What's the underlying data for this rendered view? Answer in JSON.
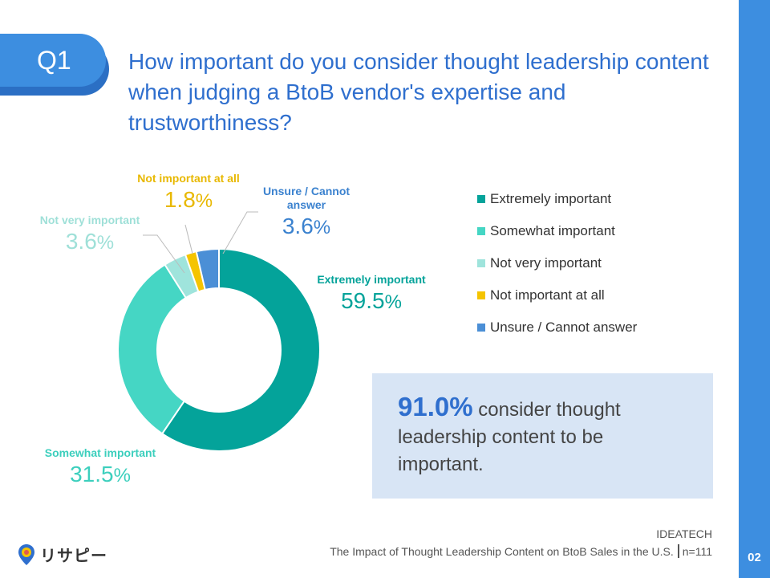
{
  "question": {
    "tag": "Q1",
    "text": "How important do you consider thought leadership content when judging a BtoB vendor's expertise and trustworthiness?"
  },
  "chart_data": {
    "type": "pie",
    "donut": true,
    "categories": [
      "Extremely important",
      "Somewhat important",
      "Not very important",
      "Not important at all",
      "Unsure / Cannot answer"
    ],
    "values": [
      59.5,
      31.5,
      3.6,
      1.8,
      3.6
    ],
    "value_labels": [
      "59.5%",
      "31.5%",
      "3.6%",
      "1.8%",
      "3.6%"
    ],
    "colors": [
      "#04a39a",
      "#45d6c4",
      "#9fe4dc",
      "#f5c400",
      "#4b8fd6"
    ],
    "legend_position": "right",
    "slice_labels": {
      "extremely": {
        "name": "Extremely important",
        "value": "59.5",
        "unit": "%"
      },
      "somewhat": {
        "name": "Somewhat important",
        "value": "31.5",
        "unit": "%"
      },
      "not_very": {
        "name": "Not very important",
        "value": "3.6",
        "unit": "%"
      },
      "not_at_all": {
        "name": "Not important at all",
        "value": "1.8",
        "unit": "%"
      },
      "unsure": {
        "name_line1": "Unsure / Cannot",
        "name_line2": "answer",
        "value": "3.6",
        "unit": "%"
      }
    }
  },
  "summary": {
    "percent": "91.0%",
    "text": " consider thought leadership content to be important."
  },
  "source": {
    "org": "IDEATECH",
    "title": "The Impact of Thought Leadership Content on BtoB Sales in the U.S.",
    "sample": "n=111"
  },
  "logo": {
    "text": "リサピー",
    "icon": "location-pin-icon"
  },
  "page_number": "02"
}
